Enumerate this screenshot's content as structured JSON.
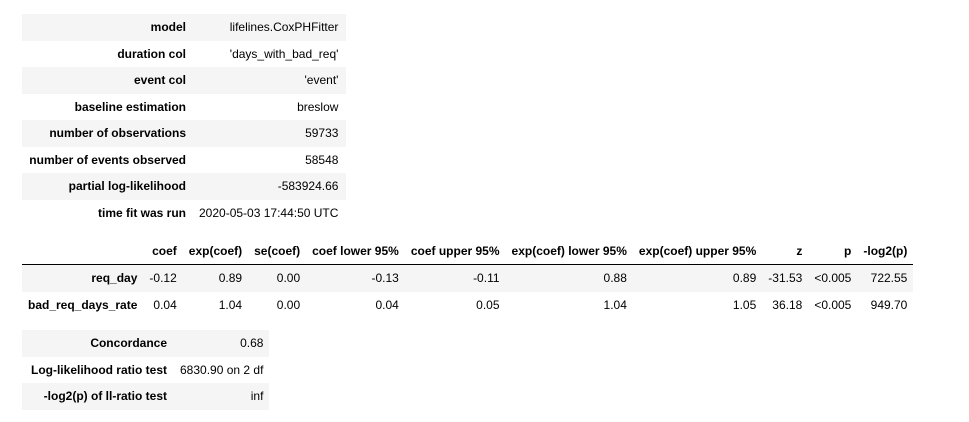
{
  "summary": [
    {
      "label": "model",
      "value": "lifelines.CoxPHFitter"
    },
    {
      "label": "duration col",
      "value": "'days_with_bad_req'"
    },
    {
      "label": "event col",
      "value": "'event'"
    },
    {
      "label": "baseline estimation",
      "value": "breslow"
    },
    {
      "label": "number of observations",
      "value": "59733"
    },
    {
      "label": "number of events observed",
      "value": "58548"
    },
    {
      "label": "partial log-likelihood",
      "value": "-583924.66"
    },
    {
      "label": "time fit was run",
      "value": "2020-05-03 17:44:50 UTC"
    }
  ],
  "coefficients": {
    "headers": [
      "",
      "coef",
      "exp(coef)",
      "se(coef)",
      "coef lower 95%",
      "coef upper 95%",
      "exp(coef) lower 95%",
      "exp(coef) upper 95%",
      "z",
      "p",
      "-log2(p)"
    ],
    "rows": [
      {
        "name": "req_day",
        "cells": [
          "-0.12",
          "0.89",
          "0.00",
          "-0.13",
          "-0.11",
          "0.88",
          "0.89",
          "-31.53",
          "<0.005",
          "722.55"
        ]
      },
      {
        "name": "bad_req_days_rate",
        "cells": [
          "0.04",
          "1.04",
          "0.00",
          "0.04",
          "0.05",
          "1.04",
          "1.05",
          "36.18",
          "<0.005",
          "949.70"
        ]
      }
    ]
  },
  "tests": [
    {
      "label": "Concordance",
      "value": "0.68"
    },
    {
      "label": "Log-likelihood ratio test",
      "value": "6830.90 on 2 df"
    },
    {
      "label": "-log2(p) of ll-ratio test",
      "value": "inf"
    }
  ]
}
